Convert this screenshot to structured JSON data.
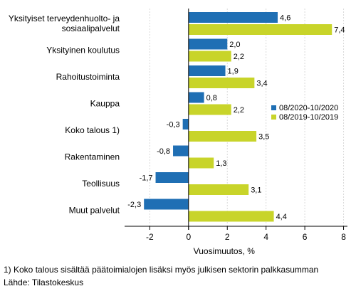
{
  "chart_data": {
    "type": "bar",
    "orientation": "horizontal",
    "categories": [
      [
        "Yksityiset terveydenhuolto- ja",
        "sosiaalipalvelut"
      ],
      [
        "Yksityinen koulutus"
      ],
      [
        "Rahoitustoiminta"
      ],
      [
        "Kauppa"
      ],
      [
        "Koko talous 1)"
      ],
      [
        "Rakentaminen"
      ],
      [
        "Teollisuus"
      ],
      [
        "Muut palvelut"
      ]
    ],
    "series": [
      {
        "name": "08/2020-10/2020",
        "color": "#1f6fb4",
        "values": [
          4.6,
          2.0,
          1.9,
          0.8,
          -0.3,
          -0.8,
          -1.7,
          -2.3
        ],
        "labels": [
          "4,6",
          "2,0",
          "1,9",
          "0,8",
          "-0,3",
          "-0,8",
          "-1,7",
          "-2,3"
        ]
      },
      {
        "name": "08/2019-10/2019",
        "color": "#c8d42a",
        "values": [
          7.4,
          2.2,
          3.4,
          2.2,
          3.5,
          1.3,
          3.1,
          4.4
        ],
        "labels": [
          "7,4",
          "2,2",
          "3,4",
          "2,2",
          "3,5",
          "1,3",
          "3,1",
          "4,4"
        ]
      }
    ],
    "xlim": [
      -3.3,
      8.2
    ],
    "xticks": [
      -2,
      0,
      2,
      4,
      6,
      8
    ],
    "xtick_labels": [
      "-2",
      "0",
      "2",
      "4",
      "6",
      "8"
    ],
    "xlabel": "Vuosimuutos, %",
    "legend_position": "right",
    "grid": true
  },
  "footnotes": {
    "note": "1) Koko talous sisältää päätoimialojen lisäksi myös julkisen sektorin palkkasumman",
    "source": "Lähde: Tilastokeskus"
  }
}
